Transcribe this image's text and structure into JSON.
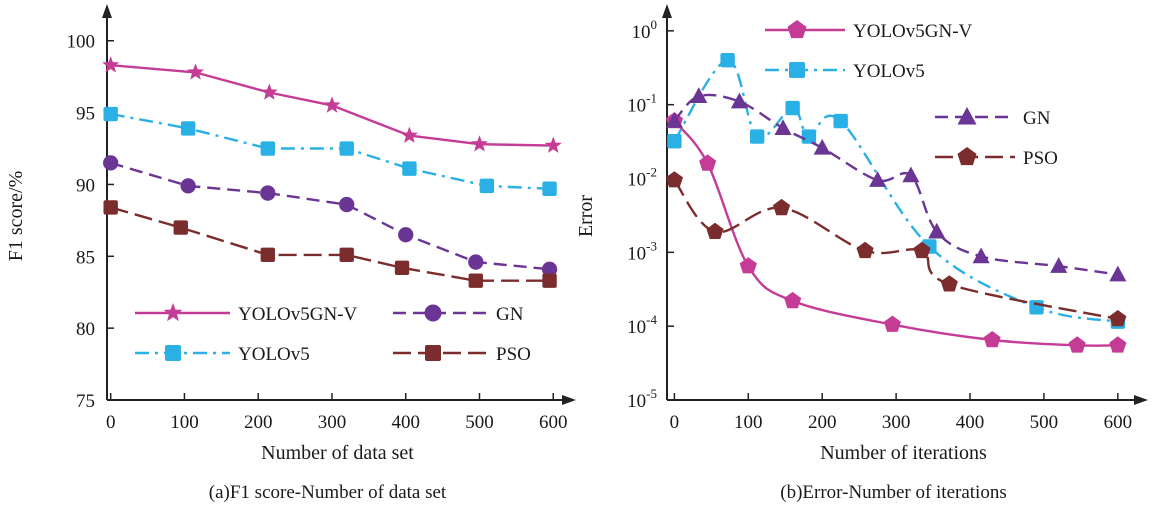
{
  "chart_data": [
    {
      "type": "line",
      "caption": "(a)F1 score-Number of data set",
      "xlabel": "Number of data set",
      "ylabel": "F1 score/%",
      "xlim": [
        -5,
        620
      ],
      "ylim": [
        75,
        102
      ],
      "xticks": [
        0,
        100,
        200,
        300,
        400,
        500,
        600
      ],
      "yticks": [
        75,
        80,
        85,
        90,
        95,
        100
      ],
      "grid": false,
      "legend_position": "bottom-center",
      "series": [
        {
          "name": "YOLOv5GN-V",
          "color": "#c43c96",
          "dash": "solid",
          "marker": "star",
          "x": [
            0,
            115,
            215,
            300,
            405,
            500,
            600
          ],
          "y": [
            98.3,
            97.8,
            96.4,
            95.5,
            93.4,
            92.8,
            92.7
          ]
        },
        {
          "name": "YOLOv5",
          "color": "#2ab0e4",
          "dash": "dashdot",
          "marker": "square",
          "x": [
            0,
            105,
            213,
            320,
            405,
            510,
            595
          ],
          "y": [
            94.9,
            93.9,
            92.5,
            92.5,
            91.1,
            89.9,
            89.7
          ]
        },
        {
          "name": "GN",
          "color": "#6a3595",
          "dash": "dashed",
          "marker": "circle",
          "x": [
            0,
            105,
            213,
            320,
            400,
            495,
            595
          ],
          "y": [
            91.5,
            89.9,
            89.4,
            88.6,
            86.5,
            84.6,
            84.1
          ]
        },
        {
          "name": "PSO",
          "color": "#7b2c2c",
          "dash": "longdash",
          "marker": "square",
          "x": [
            0,
            95,
            213,
            320,
            395,
            495,
            595
          ],
          "y": [
            88.4,
            87.0,
            85.1,
            85.1,
            84.2,
            83.3,
            83.3
          ]
        }
      ]
    },
    {
      "type": "line",
      "caption": "(b)Error-Number of  iterations",
      "xlabel": "Number of  iterations",
      "ylabel": "Error",
      "yscale": "log",
      "xlim": [
        -10,
        630
      ],
      "ylim": [
        1e-05,
        1.8
      ],
      "xticks": [
        0,
        100,
        200,
        300,
        400,
        500,
        600
      ],
      "yticks": [
        {
          "value": 1e-05,
          "base": "10",
          "exp": "-5"
        },
        {
          "value": 0.0001,
          "base": "10",
          "exp": "-4"
        },
        {
          "value": 0.001,
          "base": "10",
          "exp": "-3"
        },
        {
          "value": 0.01,
          "base": "10",
          "exp": "-2"
        },
        {
          "value": 0.1,
          "base": "10",
          "exp": "-1"
        },
        {
          "value": 1,
          "base": "10",
          "exp": "0"
        }
      ],
      "grid": false,
      "legend_position": "top",
      "series": [
        {
          "name": "YOLOv5GN-V",
          "color": "#c43c96",
          "dash": "solid",
          "marker": "pentagon",
          "x": [
            0,
            45,
            100,
            160,
            295,
            430,
            545,
            600
          ],
          "y": [
            0.06,
            0.016,
            0.00065,
            0.00022,
            0.000105,
            6.5e-05,
            5.5e-05,
            5.5e-05
          ]
        },
        {
          "name": "YOLOv5",
          "color": "#2ab0e4",
          "dash": "dashdot",
          "marker": "square",
          "x": [
            0,
            72,
            112,
            160,
            182,
            225,
            345,
            490,
            600
          ],
          "y": [
            0.032,
            0.4,
            0.037,
            0.09,
            0.037,
            0.06,
            0.0012,
            0.00018,
            0.000115
          ]
        },
        {
          "name": "GN",
          "color": "#6a3595",
          "dash": "dashed",
          "marker": "triangle",
          "x": [
            0,
            33,
            88,
            147,
            200,
            275,
            320,
            355,
            415,
            520,
            600
          ],
          "y": [
            0.06,
            0.13,
            0.11,
            0.048,
            0.026,
            0.0095,
            0.011,
            0.0019,
            0.00088,
            0.00065,
            0.0005
          ]
        },
        {
          "name": "PSO",
          "color": "#7b2c2c",
          "dash": "longdash",
          "marker": "pentagon",
          "x": [
            0,
            55,
            145,
            258,
            335,
            372,
            600
          ],
          "y": [
            0.0095,
            0.0019,
            0.004,
            0.00105,
            0.00105,
            0.00037,
            0.000125
          ]
        }
      ]
    }
  ]
}
